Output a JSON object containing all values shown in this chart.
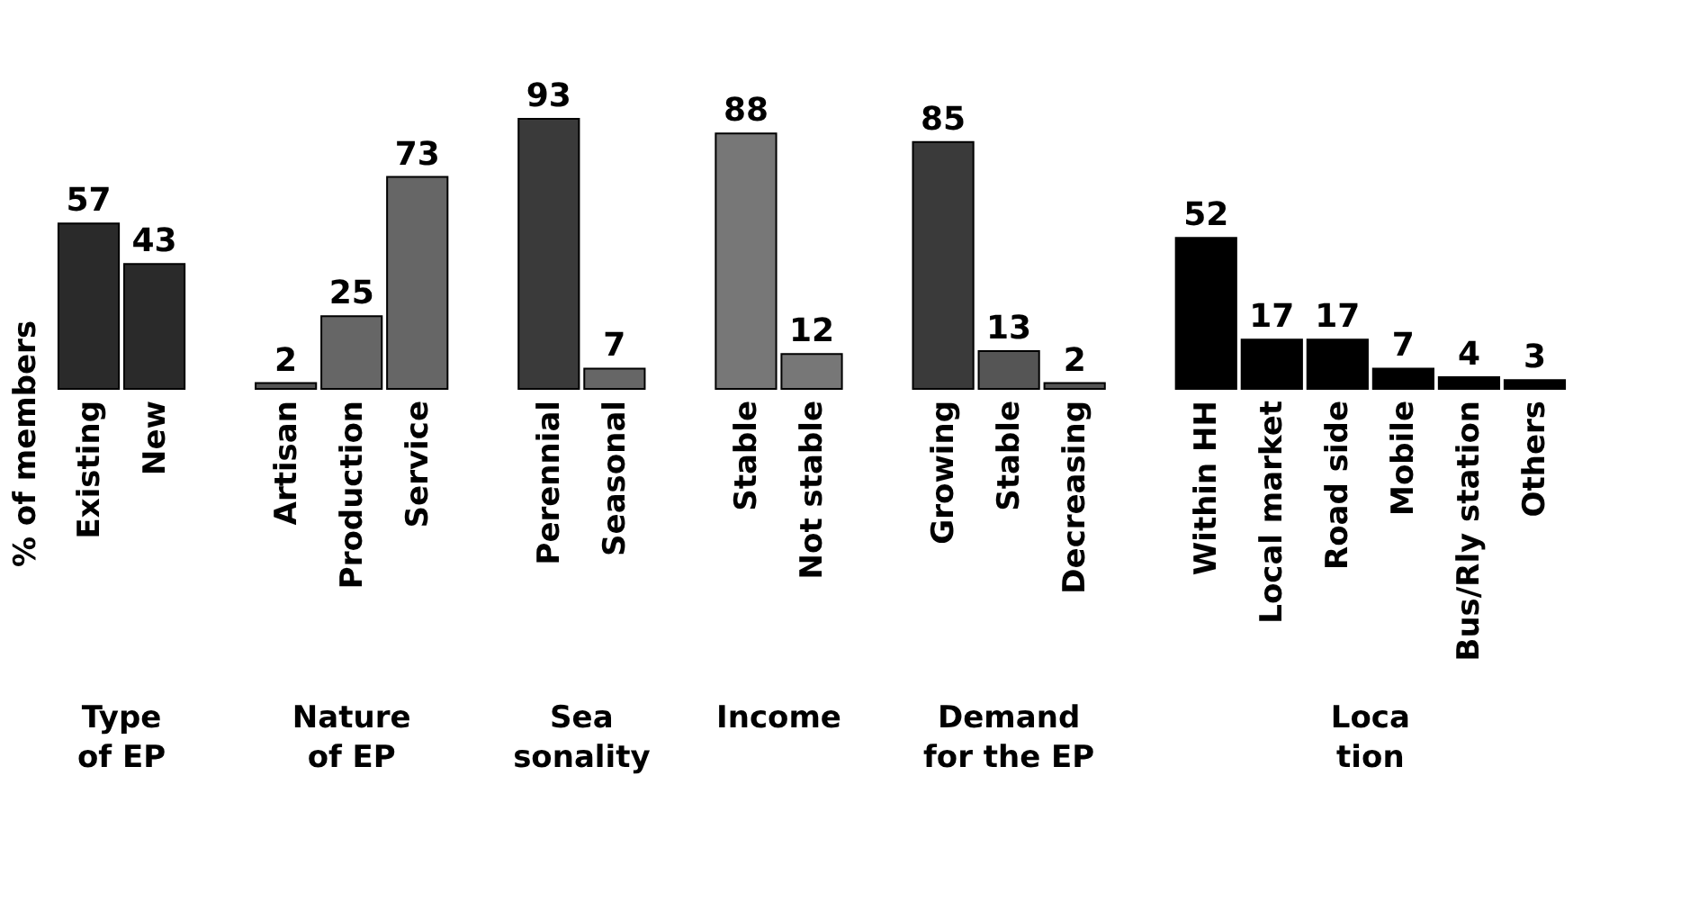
{
  "chart_data": {
    "type": "bar",
    "ylabel": "% of members",
    "categories": [
      "Existing",
      "New",
      null,
      "Artisan",
      "Production",
      "Service",
      null,
      "Perennial",
      "Seasonal",
      null,
      "Stable",
      "Not stable",
      null,
      "Growing",
      "Stable",
      "Decreasing",
      null,
      "Within HH",
      "Local market",
      "Road side",
      "Mobile",
      "Bus/Rly station",
      "Others"
    ],
    "values": [
      57,
      43,
      null,
      2,
      25,
      73,
      null,
      93,
      7,
      null,
      88,
      12,
      null,
      85,
      13,
      2,
      null,
      52,
      17,
      17,
      7,
      4,
      3
    ],
    "colors": [
      "#2a2a2a",
      "#2a2a2a",
      null,
      "#555555",
      "#666666",
      "#666666",
      null,
      "#3a3a3a",
      "#666666",
      null,
      "#777777",
      "#777777",
      null,
      "#3a3a3a",
      "#555555",
      "#555555",
      null,
      "#000000",
      "#000000",
      "#000000",
      "#000000",
      "#000000",
      "#000000"
    ],
    "data_labels": true,
    "grid": false,
    "annotations": [
      "Type\nof EP",
      "Nature\nof EP",
      "Sea\nsonality",
      "Income",
      "Demand\nfor the EP",
      "Loca\ntion"
    ]
  }
}
